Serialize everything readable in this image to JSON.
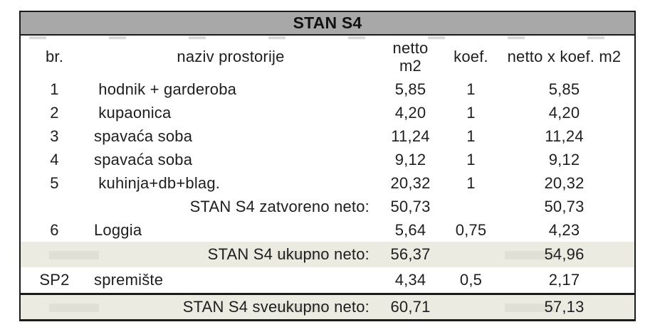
{
  "table": {
    "title": "STAN S4",
    "columns": {
      "br": "br.",
      "naziv": "naziv prostorije",
      "netto_line1": "netto",
      "netto_line2": "m2",
      "koef": "koef.",
      "result": "netto x koef. m2"
    },
    "rows": [
      {
        "br": "1",
        "naziv": " hodnik + garderoba",
        "netto": "5,85",
        "koef": "1",
        "result": "5,85"
      },
      {
        "br": "2",
        "naziv": " kupaonica",
        "netto": "4,20",
        "koef": "1",
        "result": "4,20"
      },
      {
        "br": "3",
        "naziv": "spavaća soba",
        "netto": "11,24",
        "koef": "1",
        "result": "11,24"
      },
      {
        "br": "4",
        "naziv": "spavaća soba",
        "netto": "9,12",
        "koef": "1",
        "result": "9,12"
      },
      {
        "br": "5",
        "naziv": " kuhinja+db+blag.",
        "netto": "20,32",
        "koef": "1",
        "result": "20,32"
      },
      {
        "naziv": "STAN S4 zatvoreno neto:",
        "netto": "50,73",
        "result": "50,73"
      },
      {
        "br": "6",
        "naziv": "Loggia",
        "netto": "5,64",
        "koef": "0,75",
        "result": "4,23"
      },
      {
        "naziv": "STAN S4 ukupno neto:",
        "netto": "56,37",
        "result": "54,96"
      },
      {
        "br": "SP2",
        "naziv": "spremište",
        "netto": "4,34",
        "koef": "0,5",
        "result": "2,17"
      },
      {
        "naziv": "STAN S4 sveukupno neto:",
        "netto": "60,71",
        "result": "57,13"
      }
    ]
  },
  "colors": {
    "title_fill": "#a8a8a8",
    "highlight_fill": "#ecebe2",
    "border": "#1b1b1b",
    "text": "#1e1e1e",
    "background": "#ffffff"
  }
}
